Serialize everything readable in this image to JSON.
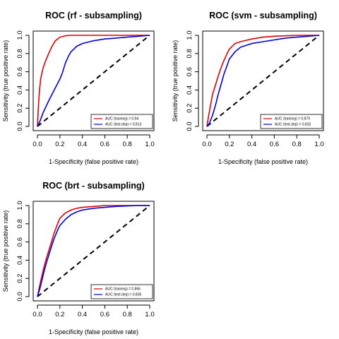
{
  "colors": {
    "training": "#dd0000",
    "test": "#0000dd",
    "diagonal": "#000000",
    "axis": "#000000"
  },
  "chart_data": [
    {
      "type": "line",
      "title": "ROC (rf - subsampling)",
      "xlabel": "1-Specificity (false positive rate)",
      "ylabel": "Sensitivity (true positive rate)",
      "xlim": [
        0,
        1
      ],
      "ylim": [
        0,
        1
      ],
      "ticks": [
        "0.0",
        "0.2",
        "0.4",
        "0.6",
        "0.8",
        "1.0"
      ],
      "grid": false,
      "legend_position": "bottom-right",
      "series": [
        {
          "name": "AUC (training) = 0.94",
          "color": "#dd0000",
          "x": [
            0,
            0.005,
            0.01,
            0.02,
            0.03,
            0.05,
            0.07,
            0.1,
            0.13,
            0.16,
            0.2,
            0.25,
            0.3,
            0.4,
            0.5,
            0.7,
            1.0
          ],
          "y": [
            0,
            0.12,
            0.25,
            0.42,
            0.53,
            0.64,
            0.71,
            0.8,
            0.88,
            0.94,
            0.98,
            0.995,
            1.0,
            1.0,
            1.0,
            1.0,
            1.0
          ]
        },
        {
          "name": "AUC (test.dep) = 0.813",
          "color": "#0000dd",
          "x": [
            0,
            0.02,
            0.05,
            0.1,
            0.15,
            0.2,
            0.22,
            0.25,
            0.28,
            0.3,
            0.35,
            0.4,
            0.5,
            0.6,
            0.7,
            0.8,
            0.9,
            1.0
          ],
          "y": [
            0,
            0.05,
            0.15,
            0.28,
            0.4,
            0.52,
            0.58,
            0.7,
            0.78,
            0.82,
            0.88,
            0.91,
            0.94,
            0.96,
            0.97,
            0.98,
            0.99,
            1.0
          ]
        }
      ]
    },
    {
      "type": "line",
      "title": "ROC (svm - subsampling)",
      "xlabel": "1-Specificity (false positive rate)",
      "ylabel": "Sensitivity (true positive rate)",
      "xlim": [
        0,
        1
      ],
      "ylim": [
        0,
        1
      ],
      "ticks": [
        "0.0",
        "0.2",
        "0.4",
        "0.6",
        "0.8",
        "1.0"
      ],
      "grid": false,
      "legend_position": "bottom-right",
      "series": [
        {
          "name": "AUC (training) = 0.879",
          "color": "#dd0000",
          "x": [
            0,
            0.01,
            0.03,
            0.05,
            0.08,
            0.1,
            0.13,
            0.15,
            0.18,
            0.2,
            0.25,
            0.3,
            0.4,
            0.5,
            0.6,
            0.8,
            1.0
          ],
          "y": [
            0,
            0.08,
            0.22,
            0.35,
            0.47,
            0.55,
            0.66,
            0.72,
            0.8,
            0.85,
            0.91,
            0.93,
            0.96,
            0.98,
            0.99,
            1.0,
            1.0
          ]
        },
        {
          "name": "AUC (test.dep) = 0.832",
          "color": "#0000dd",
          "x": [
            0,
            0.02,
            0.05,
            0.08,
            0.1,
            0.13,
            0.15,
            0.18,
            0.2,
            0.25,
            0.3,
            0.4,
            0.5,
            0.6,
            0.7,
            0.8,
            0.9,
            1.0
          ],
          "y": [
            0,
            0.03,
            0.12,
            0.25,
            0.35,
            0.48,
            0.57,
            0.67,
            0.74,
            0.82,
            0.87,
            0.91,
            0.93,
            0.95,
            0.97,
            0.98,
            0.99,
            1.0
          ]
        }
      ]
    },
    {
      "type": "line",
      "title": "ROC (brt - subsampling)",
      "xlabel": "1-Specificity (false positive rate)",
      "ylabel": "Sensitivity (true positive rate)",
      "xlim": [
        0,
        1
      ],
      "ylim": [
        0,
        1
      ],
      "ticks": [
        "0.0",
        "0.2",
        "0.4",
        "0.6",
        "0.8",
        "1.0"
      ],
      "grid": false,
      "legend_position": "bottom-right",
      "series": [
        {
          "name": "AUC (training) = 0.866",
          "color": "#dd0000",
          "x": [
            0,
            0.02,
            0.04,
            0.06,
            0.08,
            0.1,
            0.13,
            0.15,
            0.18,
            0.2,
            0.25,
            0.3,
            0.35,
            0.4,
            0.5,
            0.6,
            0.8,
            1.0
          ],
          "y": [
            0,
            0.12,
            0.23,
            0.33,
            0.42,
            0.5,
            0.62,
            0.7,
            0.8,
            0.86,
            0.92,
            0.95,
            0.97,
            0.98,
            0.99,
            1.0,
            1.0,
            1.0
          ]
        },
        {
          "name": "AUC (test.dep) = 0.835",
          "color": "#0000dd",
          "x": [
            0,
            0.02,
            0.04,
            0.06,
            0.08,
            0.1,
            0.13,
            0.15,
            0.18,
            0.2,
            0.25,
            0.3,
            0.35,
            0.4,
            0.5,
            0.6,
            0.7,
            0.8,
            0.9,
            1.0
          ],
          "y": [
            0,
            0.08,
            0.18,
            0.28,
            0.37,
            0.45,
            0.57,
            0.64,
            0.73,
            0.78,
            0.85,
            0.9,
            0.93,
            0.95,
            0.97,
            0.98,
            0.99,
            0.995,
            1.0,
            1.0
          ]
        }
      ]
    }
  ]
}
